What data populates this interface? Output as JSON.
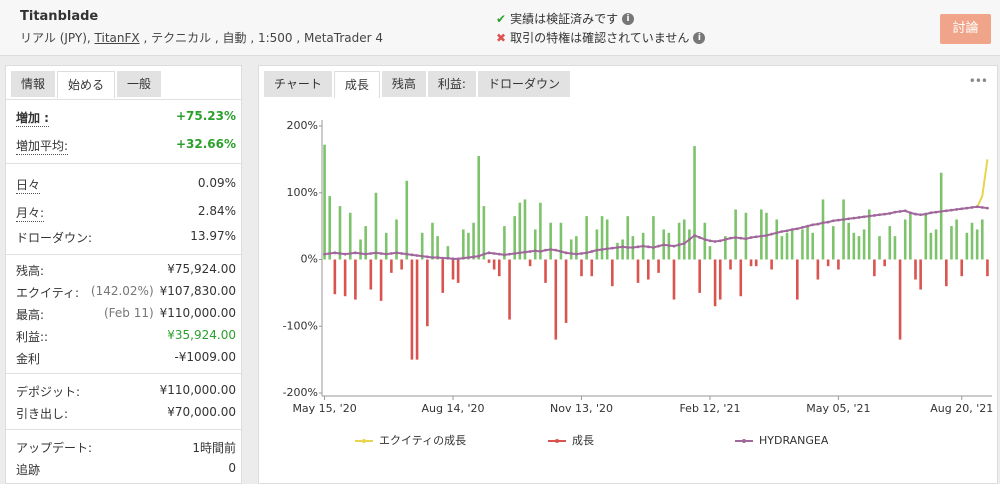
{
  "header": {
    "title": "Titanblade",
    "account": [
      "リアル (JPY), ",
      "TitanFX",
      " , テクニカル , 自動 , 1:500 , MetaTrader 4"
    ],
    "verification": [
      "実績は検証済みです",
      "取引の特権は確認されていません"
    ],
    "button": "討論"
  },
  "left_tabs": [
    "情報",
    "始める",
    "一般"
  ],
  "stats": [
    [
      {
        "label": "増加 :",
        "value": "+75.23%"
      },
      {
        "label": "増加平均:",
        "value": "+32.66%"
      }
    ],
    [
      {
        "label": "日々",
        "value": "0.09%"
      },
      {
        "label": "月々:",
        "value": "2.84%"
      },
      {
        "label": "ドローダウン:",
        "value": "13.97%"
      }
    ],
    [
      {
        "label": "残高:",
        "value": "¥75,924.00"
      },
      {
        "label": "エクイティ:",
        "note": "(142.02%)",
        "value": "¥107,830.00"
      },
      {
        "label": "最高:",
        "note": "(Feb 11)",
        "value": "¥110,000.00"
      },
      {
        "label": "利益::",
        "value": "¥35,924.00"
      },
      {
        "label": "金利",
        "value": "-¥1009.00"
      }
    ],
    [
      {
        "label": "デポジット:",
        "value": "¥110,000.00"
      },
      {
        "label": "引き出し:",
        "value": "¥70,000.00"
      }
    ],
    [
      {
        "label": "アップデート:",
        "value": "1時間前"
      },
      {
        "label": "追跡",
        "value": "0"
      }
    ]
  ],
  "chart_tabs": [
    "チャート",
    "成長",
    "残高",
    "利益:",
    "ドローダウン"
  ],
  "menu": "•••",
  "chart_data": {
    "type": "bar",
    "categories": [
      "May 15, '20",
      null,
      null,
      null,
      null,
      null,
      null,
      null,
      null,
      null,
      null,
      null,
      null,
      null,
      null,
      null,
      null,
      null,
      null,
      null,
      null,
      null,
      null,
      null,
      null,
      "Aug 14, '20",
      null,
      null,
      null,
      null,
      null,
      null,
      null,
      null,
      null,
      null,
      null,
      null,
      null,
      null,
      null,
      null,
      null,
      null,
      null,
      null,
      null,
      null,
      null,
      null,
      "Nov 13, '20",
      null,
      null,
      null,
      null,
      null,
      null,
      null,
      null,
      null,
      null,
      null,
      null,
      null,
      null,
      null,
      null,
      null,
      null,
      null,
      null,
      null,
      null,
      null,
      null,
      "Feb 12, '21",
      null,
      null,
      null,
      null,
      null,
      null,
      null,
      null,
      null,
      null,
      null,
      null,
      null,
      null,
      null,
      null,
      null,
      null,
      null,
      null,
      null,
      null,
      null,
      null,
      "May 05, '21",
      null,
      null,
      null,
      null,
      null,
      null,
      null,
      null,
      null,
      null,
      null,
      null,
      null,
      null,
      null,
      null,
      null,
      null,
      null,
      null,
      null,
      null,
      null,
      "Aug 20, '21",
      null,
      null,
      null,
      null,
      null
    ],
    "series": [
      {
        "name": "エクイティの成長",
        "type": "line",
        "color": "#e8d44d",
        "values": [
          null,
          null,
          null,
          null,
          null,
          null,
          null,
          null,
          null,
          null,
          null,
          null,
          null,
          null,
          null,
          null,
          null,
          null,
          null,
          null,
          null,
          null,
          null,
          null,
          null,
          null,
          null,
          null,
          null,
          null,
          null,
          null,
          null,
          null,
          null,
          null,
          null,
          null,
          null,
          null,
          null,
          null,
          null,
          null,
          null,
          null,
          null,
          null,
          null,
          null,
          null,
          null,
          null,
          null,
          null,
          null,
          null,
          null,
          null,
          null,
          null,
          null,
          null,
          null,
          null,
          null,
          null,
          null,
          null,
          null,
          null,
          null,
          null,
          null,
          null,
          null,
          null,
          null,
          null,
          null,
          null,
          null,
          null,
          null,
          null,
          null,
          null,
          null,
          null,
          null,
          null,
          null,
          null,
          null,
          null,
          null,
          null,
          null,
          null,
          null,
          null,
          null,
          null,
          null,
          null,
          null,
          null,
          null,
          null,
          null,
          null,
          null,
          null,
          null,
          null,
          null,
          null,
          null,
          null,
          null,
          null,
          null,
          null,
          null,
          null,
          null,
          null,
          78,
          95,
          150
        ]
      },
      {
        "name": "成長",
        "type": "bar",
        "color": "#d9534f",
        "positive_color": "#7dc36b",
        "values": [
          172,
          95,
          -52,
          80,
          -55,
          70,
          -60,
          30,
          50,
          -45,
          100,
          -62,
          40,
          -20,
          60,
          -15,
          118,
          -150,
          -150,
          40,
          -100,
          55,
          35,
          -50,
          20,
          -30,
          -35,
          45,
          40,
          55,
          155,
          80,
          -5,
          -15,
          -25,
          50,
          -90,
          65,
          85,
          90,
          -10,
          45,
          85,
          -35,
          55,
          -120,
          55,
          -95,
          30,
          35,
          -25,
          65,
          -25,
          45,
          65,
          60,
          -40,
          25,
          30,
          65,
          35,
          -35,
          40,
          -30,
          65,
          -20,
          45,
          40,
          -60,
          55,
          60,
          45,
          170,
          -50,
          55,
          20,
          -70,
          -60,
          35,
          -15,
          75,
          -55,
          70,
          -10,
          -10,
          75,
          70,
          -15,
          60,
          35,
          40,
          45,
          -60,
          45,
          50,
          40,
          -30,
          90,
          -10,
          50,
          -15,
          90,
          55,
          40,
          35,
          45,
          75,
          -25,
          35,
          -10,
          50,
          35,
          -120,
          60,
          70,
          -30,
          -45,
          70,
          40,
          45,
          130,
          -40,
          50,
          60,
          -25,
          40,
          55,
          45,
          60,
          -25
        ]
      },
      {
        "name": "HYDRANGEA",
        "type": "line",
        "color": "#a0689a",
        "markers": true,
        "values": [
          8,
          9,
          10,
          9,
          8,
          9,
          10,
          9,
          8,
          9,
          10,
          9,
          8,
          9,
          10,
          9,
          8,
          7,
          6,
          5,
          4,
          3,
          3,
          2,
          2,
          1,
          1,
          2,
          3,
          4,
          5,
          8,
          10,
          9,
          8,
          7,
          8,
          9,
          10,
          11,
          12,
          13,
          12,
          14,
          15,
          14,
          12,
          10,
          9,
          8,
          9,
          10,
          12,
          14,
          15,
          16,
          17,
          18,
          19,
          18,
          18,
          19,
          20,
          19,
          18,
          20,
          22,
          21,
          20,
          22,
          24,
          30,
          36,
          33,
          30,
          28,
          27,
          28,
          30,
          32,
          33,
          32,
          31,
          33,
          34,
          35,
          36,
          38,
          40,
          42,
          43,
          45,
          46,
          48,
          50,
          52,
          53,
          55,
          56,
          58,
          59,
          60,
          61,
          62,
          63,
          64,
          65,
          66,
          67,
          68,
          69,
          71,
          72,
          73,
          70,
          68,
          67,
          68,
          70,
          71,
          72,
          73,
          74,
          75,
          76,
          77,
          78,
          79,
          78,
          77
        ]
      }
    ],
    "ylim": [
      -200,
      200
    ],
    "yticks": [
      {
        "value": 200,
        "label": "200%"
      },
      {
        "value": 100,
        "label": "100%"
      },
      {
        "value": 0,
        "label": "0%"
      },
      {
        "value": -100,
        "label": "-100%"
      },
      {
        "value": -200,
        "label": "-200%"
      }
    ],
    "grid": false,
    "legend": "bottom"
  }
}
